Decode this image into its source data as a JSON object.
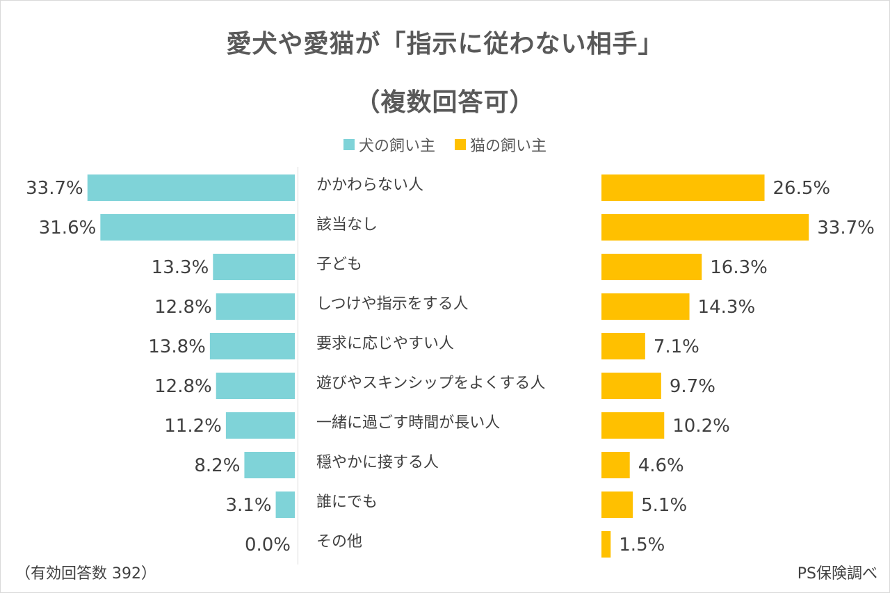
{
  "title_line1": "愛犬や愛猫が「指示に従わない相手」",
  "title_line2": "（複数回答可）",
  "legend": [
    {
      "label": "犬の飼い主",
      "color": "#7fd3d8"
    },
    {
      "label": "猫の飼い主",
      "color": "#ffc000"
    }
  ],
  "footer_left": "（有効回答数 392）",
  "footer_right": "PS保険調べ",
  "chart_data": {
    "type": "bar",
    "orientation": "horizontal-butterfly",
    "categories": [
      "かかわらない人",
      "該当なし",
      "子ども",
      "しつけや指示をする人",
      "要求に応じやすい人",
      "遊びやスキンシップをよくする人",
      "一緒に過ごす時間が長い人",
      "穏やかに接する人",
      "誰にでも",
      "その他"
    ],
    "series": [
      {
        "name": "犬の飼い主",
        "color": "#7fd3d8",
        "values": [
          33.7,
          31.6,
          13.3,
          12.8,
          13.8,
          12.8,
          11.2,
          8.2,
          3.1,
          0.0
        ],
        "labels": [
          "33.7%",
          "31.6%",
          "13.3%",
          "12.8%",
          "13.8%",
          "12.8%",
          "11.2%",
          "8.2%",
          "3.1%",
          "0.0%"
        ]
      },
      {
        "name": "猫の飼い主",
        "color": "#ffc000",
        "values": [
          26.5,
          33.7,
          16.3,
          14.3,
          7.1,
          9.7,
          10.2,
          4.6,
          5.1,
          1.5
        ],
        "labels": [
          "26.5%",
          "33.7%",
          "16.3%",
          "14.3%",
          "7.1%",
          "9.7%",
          "10.2%",
          "4.6%",
          "5.1%",
          "1.5%"
        ]
      }
    ],
    "unit": "%",
    "legend_position": "top-center",
    "grid": false
  }
}
